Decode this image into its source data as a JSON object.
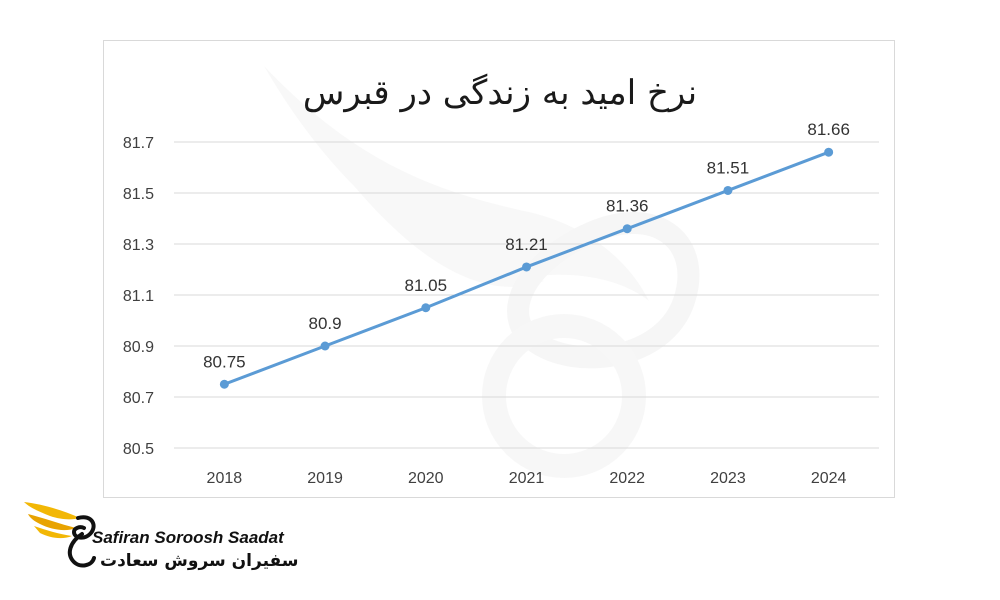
{
  "chart_data": {
    "type": "line",
    "title": "نرخ امید به زندگی در قبرس",
    "categories": [
      "2018",
      "2019",
      "2020",
      "2021",
      "2022",
      "2023",
      "2024"
    ],
    "series": [
      {
        "values": [
          80.75,
          80.9,
          81.05,
          81.21,
          81.36,
          81.51,
          81.66
        ],
        "labels": [
          "80.75",
          "80.9",
          "81.05",
          "81.21",
          "81.36",
          "81.51",
          "81.66"
        ]
      }
    ],
    "yticks": [
      "80.5",
      "80.7",
      "80.9",
      "81.1",
      "81.3",
      "81.5",
      "81.7"
    ],
    "ylim": [
      80.5,
      81.7
    ],
    "grid": true,
    "colors": {
      "line": "#5b9bd5",
      "grid": "#d9d9d9"
    }
  },
  "brand": {
    "name_en": "Safiran Soroosh Saadat",
    "name_fa": "سفیران سروش سعادت",
    "logo": "bird-wing-logo",
    "watermark": "bird-wing-watermark-icon"
  }
}
